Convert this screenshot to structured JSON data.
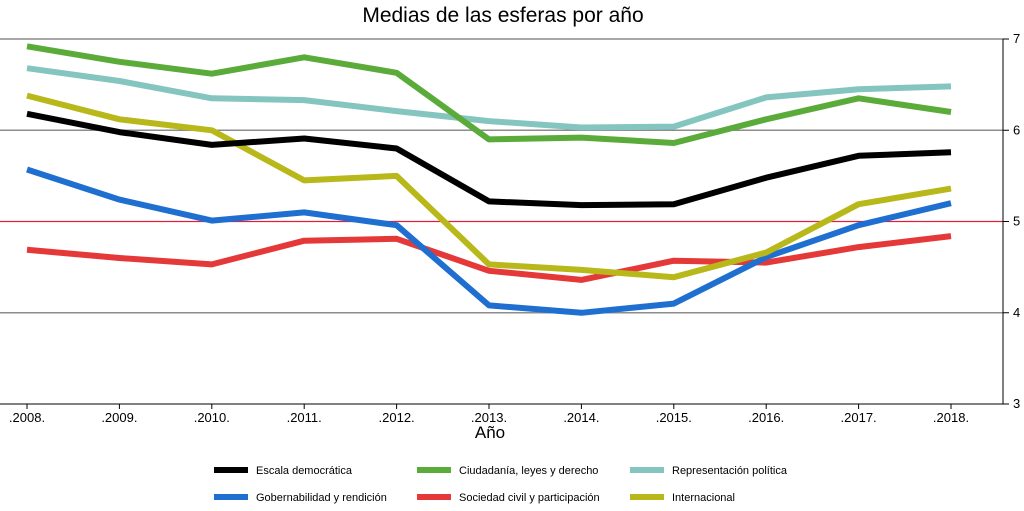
{
  "chart_data": {
    "type": "line",
    "title": "Medias de las esferas por año",
    "xlabel": "Año",
    "ylabel": "",
    "categories": [
      ".2008.",
      ".2009.",
      ".2010.",
      ".2011.",
      ".2012.",
      ".2013.",
      ".2014.",
      ".2015.",
      ".2016.",
      ".2017.",
      ".2018."
    ],
    "ylim": [
      3,
      7
    ],
    "yticks": [
      "3",
      "4",
      "5",
      "6",
      "7"
    ],
    "reference_line": {
      "value": 5,
      "color": "#e0203a"
    },
    "grid": "horizontal",
    "legend_position": "bottom",
    "series": [
      {
        "name": "Escala democrática",
        "color": "#000000",
        "values": [
          6.18,
          5.98,
          5.84,
          5.91,
          5.8,
          5.22,
          5.18,
          5.19,
          5.48,
          5.72,
          5.76
        ]
      },
      {
        "name": "Ciudadanía, leyes y derecho",
        "color": "#5aab3a",
        "values": [
          6.92,
          6.75,
          6.62,
          6.8,
          6.63,
          5.9,
          5.92,
          5.86,
          6.12,
          6.35,
          6.2
        ]
      },
      {
        "name": "Representación política",
        "color": "#85c5bf",
        "values": [
          6.68,
          6.54,
          6.35,
          6.33,
          6.21,
          6.1,
          6.03,
          6.04,
          6.36,
          6.45,
          6.48
        ]
      },
      {
        "name": "Gobernabilidad y rendición",
        "color": "#1f6fd1",
        "values": [
          5.57,
          5.24,
          5.01,
          5.1,
          4.96,
          4.08,
          4.0,
          4.1,
          4.61,
          4.96,
          5.2
        ]
      },
      {
        "name": "Sociedad civil y participación",
        "color": "#e53838",
        "values": [
          4.69,
          4.6,
          4.53,
          4.79,
          4.81,
          4.46,
          4.36,
          4.57,
          4.55,
          4.72,
          4.84
        ]
      },
      {
        "name": "Internacional",
        "color": "#b8b81a",
        "values": [
          6.38,
          6.12,
          6.0,
          5.45,
          5.5,
          4.53,
          4.47,
          4.39,
          4.66,
          5.19,
          5.36
        ]
      }
    ]
  }
}
